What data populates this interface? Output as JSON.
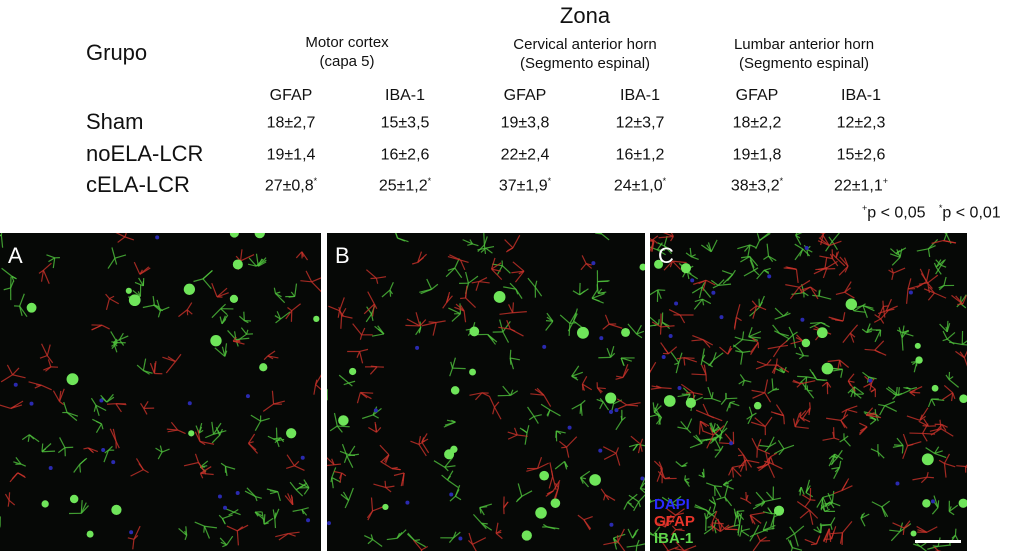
{
  "table": {
    "zone_title": "Zona",
    "group_header": "Grupo",
    "zones": [
      {
        "line1": "Motor cortex",
        "line2": "(capa 5)"
      },
      {
        "line1": "Cervical anterior horn",
        "line2": "(Segmento espinal)"
      },
      {
        "line1": "Lumbar anterior horn",
        "line2": "(Segmento espinal)"
      }
    ],
    "markers": [
      "GFAP",
      "IBA-1",
      "GFAP",
      "IBA-1",
      "GFAP",
      "IBA-1"
    ],
    "rows": [
      {
        "group": "Sham",
        "values": [
          "18±2,7",
          "15±3,5",
          "19±3,8",
          "12±3,7",
          "18±2,2",
          "12±2,3"
        ],
        "marks": [
          "",
          "",
          "",
          "",
          "",
          ""
        ]
      },
      {
        "group": "noELA-LCR",
        "values": [
          "19±1,4",
          "16±2,6",
          "22±2,4",
          "16±1,2",
          "19±1,8",
          "15±2,6"
        ],
        "marks": [
          "",
          "",
          "",
          "",
          "",
          ""
        ]
      },
      {
        "group": "cELA-LCR",
        "values": [
          "27±0,8",
          "25±1,2",
          "37±1,9",
          "24±1,0",
          "38±3,2",
          "22±1,1"
        ],
        "marks": [
          "*",
          "*",
          "*",
          "*",
          "*",
          "+"
        ]
      }
    ],
    "footnote": {
      "plus_mark": "+",
      "plus_text": "p < 0,05",
      "star_mark": "*",
      "star_text": "p < 0,01"
    }
  },
  "panels": [
    {
      "label": "A"
    },
    {
      "label": "B"
    },
    {
      "label": "C"
    }
  ],
  "legend": [
    {
      "text": "DAPI",
      "color": "#2a2aff"
    },
    {
      "text": "GFAP",
      "color": "#e8342a"
    },
    {
      "text": "IBA-1",
      "color": "#5fd64a"
    }
  ]
}
